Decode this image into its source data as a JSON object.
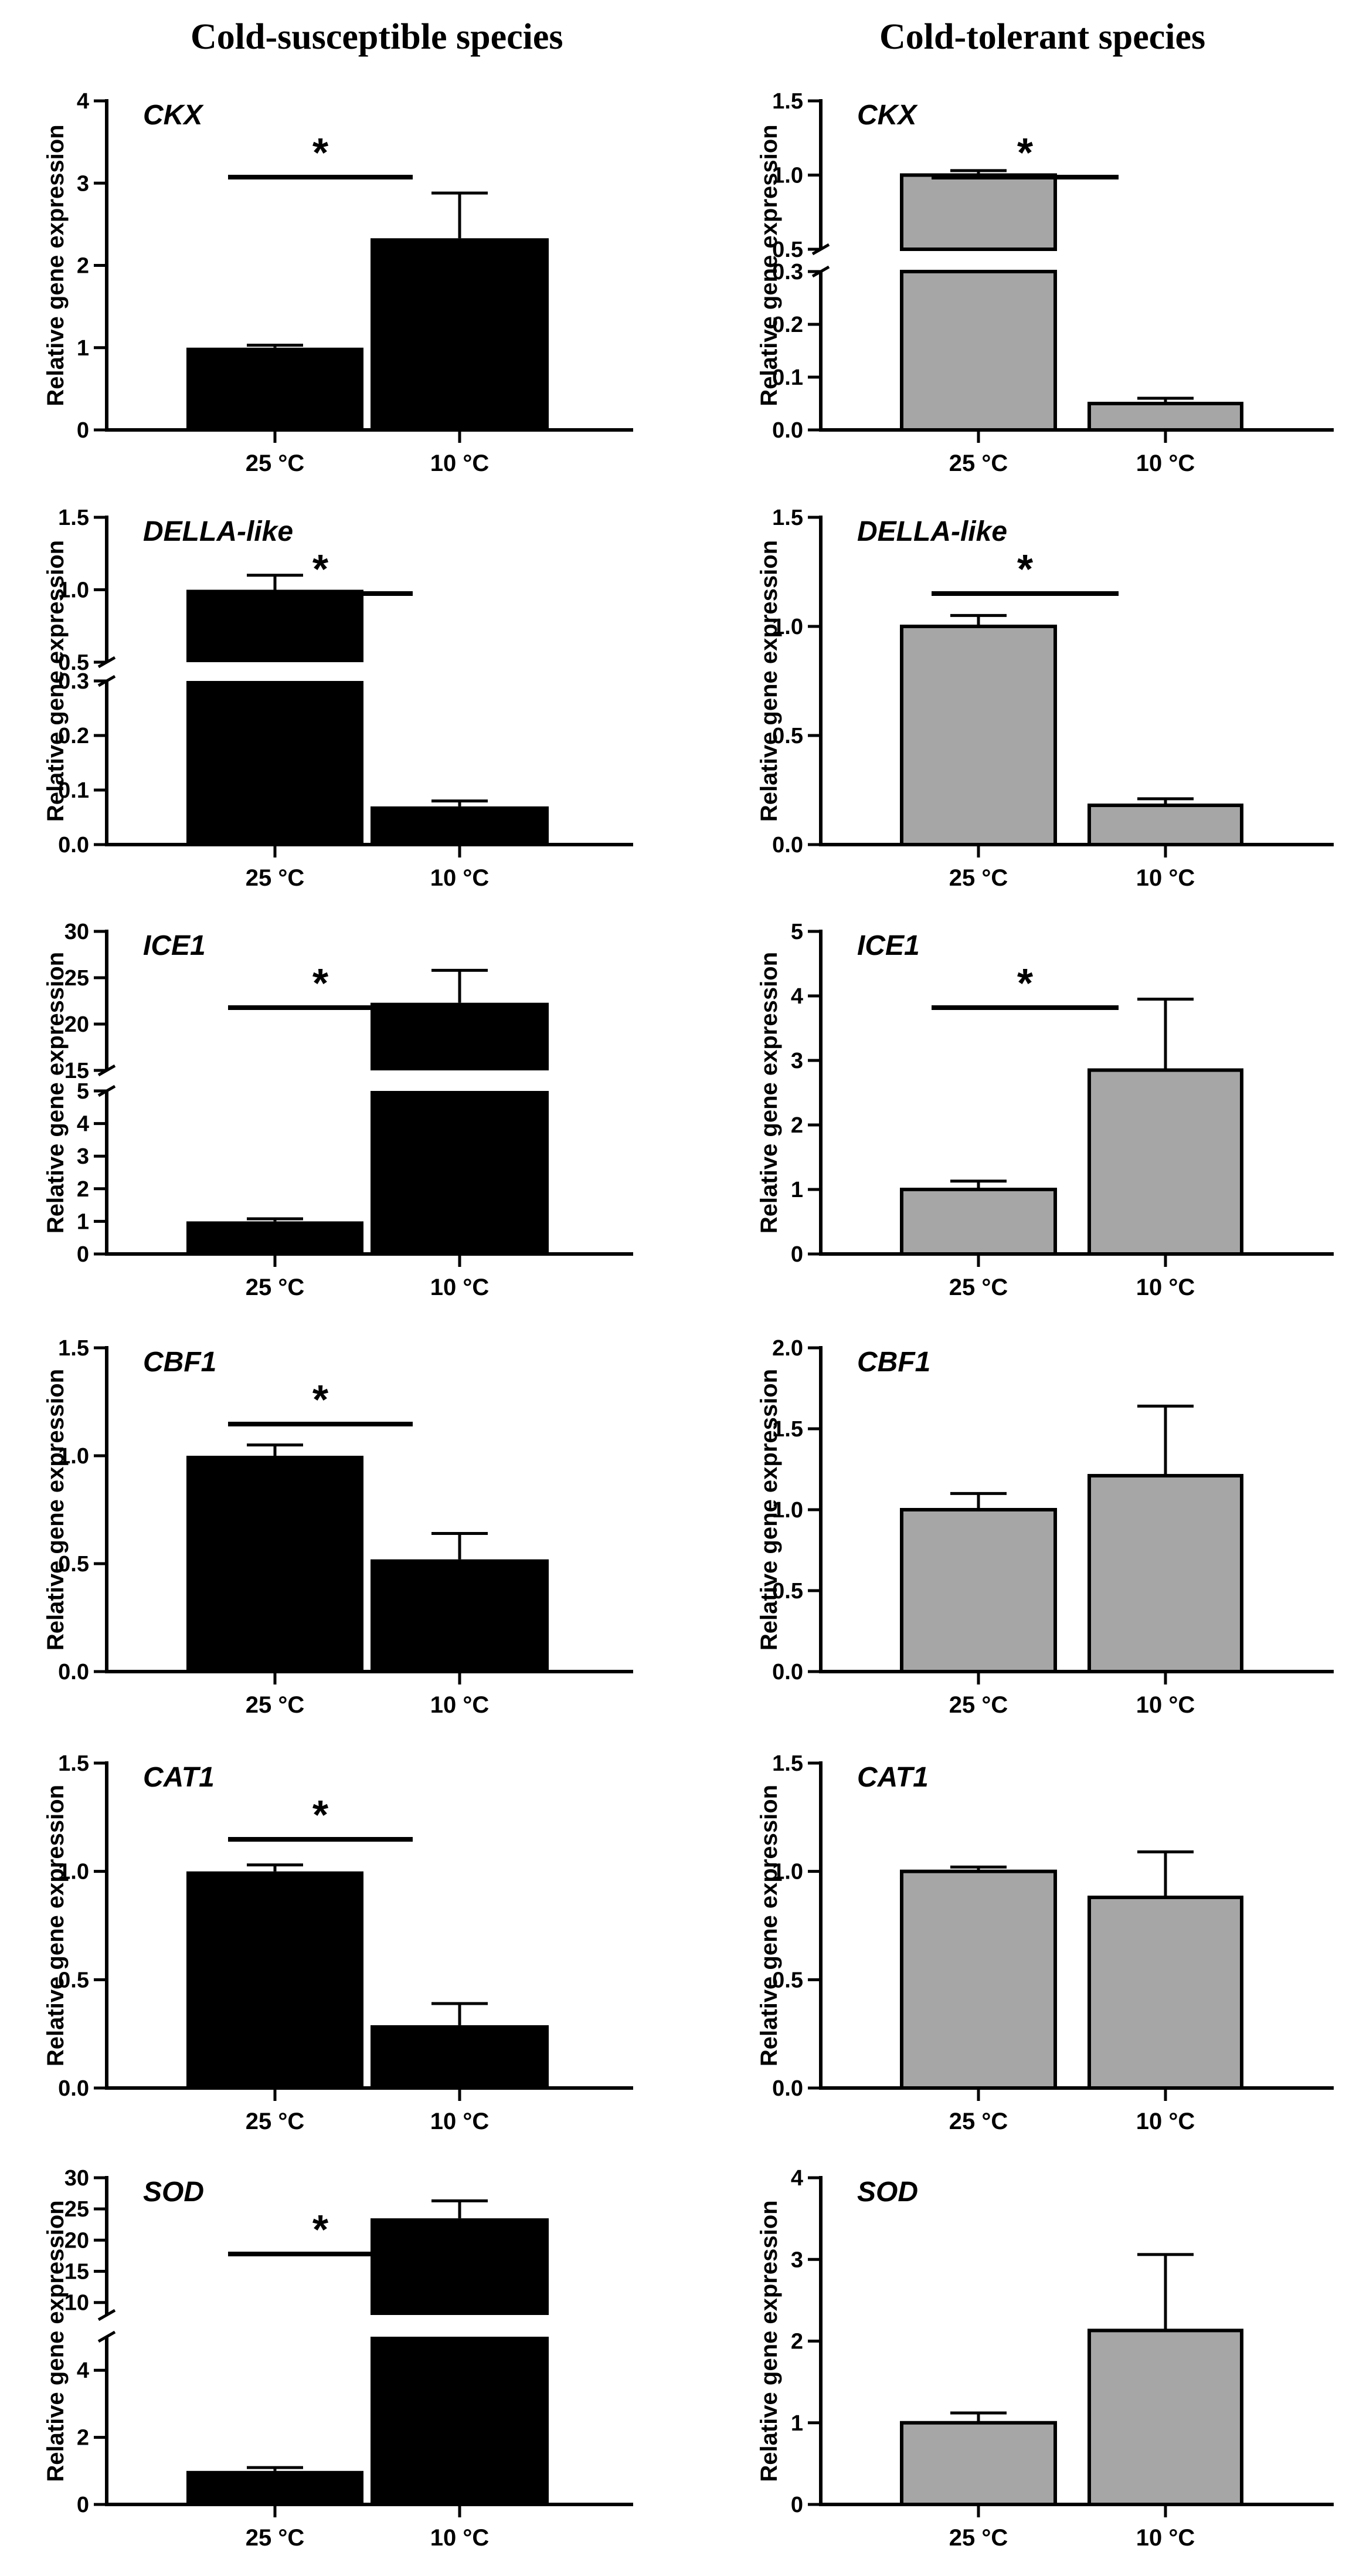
{
  "columns": [
    "Cold-susceptible species",
    "Cold-tolerant species"
  ],
  "chart_data": [
    {
      "type": "bar",
      "panel": "cold-susceptible",
      "title": "CKX",
      "ylabel": "Relative gene expression",
      "categories": [
        "25 °C",
        "10 °C"
      ],
      "values": [
        1.0,
        2.33
      ],
      "errors": [
        0.03,
        0.55
      ],
      "bar_color": "#000000",
      "ylim": [
        0,
        4
      ],
      "yticks": [
        0,
        1,
        2,
        3,
        4
      ],
      "tick_labels": [
        "0",
        "1",
        "2",
        "3",
        "4"
      ],
      "significance": "*"
    },
    {
      "type": "bar",
      "panel": "cold-tolerant",
      "title": "CKX",
      "ylabel": "Relative gene expression",
      "categories": [
        "25 °C",
        "10 °C"
      ],
      "values": [
        1.0,
        0.05
      ],
      "errors": [
        0.03,
        0.01
      ],
      "bar_color": "#a6a6a6",
      "ylim": [
        0,
        1.5
      ],
      "axis_break": [
        0.3,
        0.5
      ],
      "yticks": [
        0,
        0.1,
        0.2,
        0.3,
        0.5,
        1.0,
        1.5
      ],
      "tick_labels": [
        "0.0",
        "0.1",
        "0.2",
        "0.3",
        "0.5",
        "1.0",
        "1.5"
      ],
      "significance": "*"
    },
    {
      "type": "bar",
      "panel": "cold-susceptible",
      "title": "DELLA-like",
      "ylabel": "Relative gene expression",
      "categories": [
        "25 °C",
        "10 °C"
      ],
      "values": [
        1.0,
        0.07
      ],
      "errors": [
        0.1,
        0.01
      ],
      "bar_color": "#000000",
      "ylim": [
        0,
        1.5
      ],
      "axis_break": [
        0.3,
        0.5
      ],
      "yticks": [
        0,
        0.1,
        0.2,
        0.3,
        0.5,
        1.0,
        1.5
      ],
      "tick_labels": [
        "0.0",
        "0.1",
        "0.2",
        "0.3",
        "0.5",
        "1.0",
        "1.5"
      ],
      "significance": "*"
    },
    {
      "type": "bar",
      "panel": "cold-tolerant",
      "title": "DELLA-like",
      "ylabel": "Relative gene expression",
      "categories": [
        "25 °C",
        "10 °C"
      ],
      "values": [
        1.0,
        0.18
      ],
      "errors": [
        0.05,
        0.03
      ],
      "bar_color": "#a6a6a6",
      "ylim": [
        0,
        1.5
      ],
      "yticks": [
        0,
        0.5,
        1.0,
        1.5
      ],
      "tick_labels": [
        "0.0",
        "0.5",
        "1.0",
        "1.5"
      ],
      "significance": "*"
    },
    {
      "type": "bar",
      "panel": "cold-susceptible",
      "title": "ICE1",
      "ylabel": "Relative gene expression",
      "categories": [
        "25 °C",
        "10 °C"
      ],
      "values": [
        1.0,
        22.3
      ],
      "errors": [
        0.08,
        3.5
      ],
      "bar_color": "#000000",
      "ylim": [
        0,
        30
      ],
      "axis_break": [
        5,
        15
      ],
      "yticks": [
        0,
        1,
        2,
        3,
        4,
        5,
        15,
        20,
        25,
        30
      ],
      "tick_labels": [
        "0",
        "1",
        "2",
        "3",
        "4",
        "5",
        "15",
        "20",
        "25",
        "30"
      ],
      "significance": "*"
    },
    {
      "type": "bar",
      "panel": "cold-tolerant",
      "title": "ICE1",
      "ylabel": "Relative gene expression",
      "categories": [
        "25 °C",
        "10 °C"
      ],
      "values": [
        1.0,
        2.85
      ],
      "errors": [
        0.13,
        1.1
      ],
      "bar_color": "#a6a6a6",
      "ylim": [
        0,
        5
      ],
      "yticks": [
        0,
        1,
        2,
        3,
        4,
        5
      ],
      "tick_labels": [
        "0",
        "1",
        "2",
        "3",
        "4",
        "5"
      ],
      "significance": "*"
    },
    {
      "type": "bar",
      "panel": "cold-susceptible",
      "title": "CBF1",
      "ylabel": "Relative gene expression",
      "categories": [
        "25 °C",
        "10 °C"
      ],
      "values": [
        1.0,
        0.52
      ],
      "errors": [
        0.05,
        0.12
      ],
      "bar_color": "#000000",
      "ylim": [
        0,
        1.5
      ],
      "yticks": [
        0,
        0.5,
        1.0,
        1.5
      ],
      "tick_labels": [
        "0.0",
        "0.5",
        "1.0",
        "1.5"
      ],
      "significance": "*"
    },
    {
      "type": "bar",
      "panel": "cold-tolerant",
      "title": "CBF1",
      "ylabel": "Relative gene expression",
      "categories": [
        "25 °C",
        "10 °C"
      ],
      "values": [
        1.0,
        1.21
      ],
      "errors": [
        0.1,
        0.43
      ],
      "bar_color": "#a6a6a6",
      "ylim": [
        0,
        2
      ],
      "yticks": [
        0,
        0.5,
        1.0,
        1.5,
        2.0
      ],
      "tick_labels": [
        "0.0",
        "0.5",
        "1.0",
        "1.5",
        "2.0"
      ],
      "significance": ""
    },
    {
      "type": "bar",
      "panel": "cold-susceptible",
      "title": "CAT1",
      "ylabel": "Relative gene expression",
      "categories": [
        "25 °C",
        "10 °C"
      ],
      "values": [
        1.0,
        0.29
      ],
      "errors": [
        0.03,
        0.1
      ],
      "bar_color": "#000000",
      "ylim": [
        0,
        1.5
      ],
      "yticks": [
        0,
        0.5,
        1.0,
        1.5
      ],
      "tick_labels": [
        "0.0",
        "0.5",
        "1.0",
        "1.5"
      ],
      "significance": "*"
    },
    {
      "type": "bar",
      "panel": "cold-tolerant",
      "title": "CAT1",
      "ylabel": "Relative gene expression",
      "categories": [
        "25 °C",
        "10 °C"
      ],
      "values": [
        1.0,
        0.88
      ],
      "errors": [
        0.02,
        0.21
      ],
      "bar_color": "#a6a6a6",
      "ylim": [
        0,
        1.5
      ],
      "yticks": [
        0,
        0.5,
        1.0,
        1.5
      ],
      "tick_labels": [
        "0.0",
        "0.5",
        "1.0",
        "1.5"
      ],
      "significance": ""
    },
    {
      "type": "bar",
      "panel": "cold-susceptible",
      "title": "SOD",
      "ylabel": "Relative gene expression",
      "categories": [
        "25 °C",
        "10 °C"
      ],
      "values": [
        1.0,
        23.5
      ],
      "errors": [
        0.1,
        2.8
      ],
      "bar_color": "#000000",
      "ylim": [
        0,
        30
      ],
      "axis_break": [
        5,
        8
      ],
      "yticks": [
        0,
        2,
        4,
        10,
        15,
        20,
        25,
        30
      ],
      "tick_labels": [
        "0",
        "2",
        "4",
        "10",
        "15",
        "20",
        "25",
        "30"
      ],
      "significance": "*"
    },
    {
      "type": "bar",
      "panel": "cold-tolerant",
      "title": "SOD",
      "ylabel": "Relative gene expression",
      "categories": [
        "25 °C",
        "10 °C"
      ],
      "values": [
        1.0,
        2.13
      ],
      "errors": [
        0.12,
        0.93
      ],
      "bar_color": "#a6a6a6",
      "ylim": [
        0,
        4
      ],
      "yticks": [
        0,
        1,
        2,
        3,
        4
      ],
      "tick_labels": [
        "0",
        "1",
        "2",
        "3",
        "4"
      ],
      "significance": ""
    }
  ]
}
